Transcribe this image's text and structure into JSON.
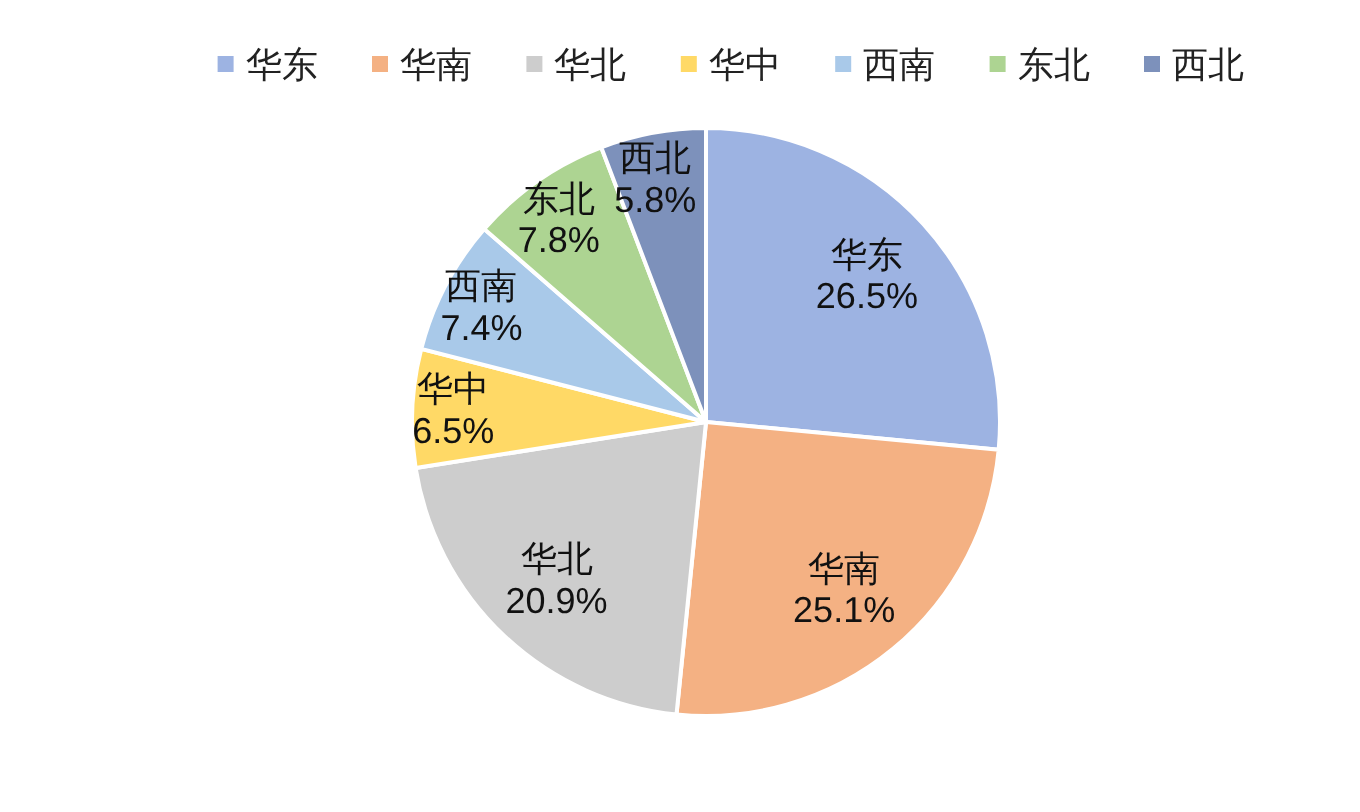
{
  "chart_data": {
    "type": "pie",
    "categories": [
      "华东",
      "华南",
      "华北",
      "华中",
      "西南",
      "东北",
      "西北"
    ],
    "values": [
      26.5,
      25.1,
      20.9,
      6.5,
      7.4,
      7.8,
      5.8
    ],
    "value_labels": [
      "26.5%",
      "25.1%",
      "20.9%",
      "6.5%",
      "7.4%",
      "7.8%",
      "5.8%"
    ],
    "colors": [
      "#9db3e2",
      "#f4b183",
      "#cdcdcd",
      "#ffd966",
      "#a9c9e9",
      "#add492",
      "#7d91bb"
    ],
    "legend": "top"
  }
}
